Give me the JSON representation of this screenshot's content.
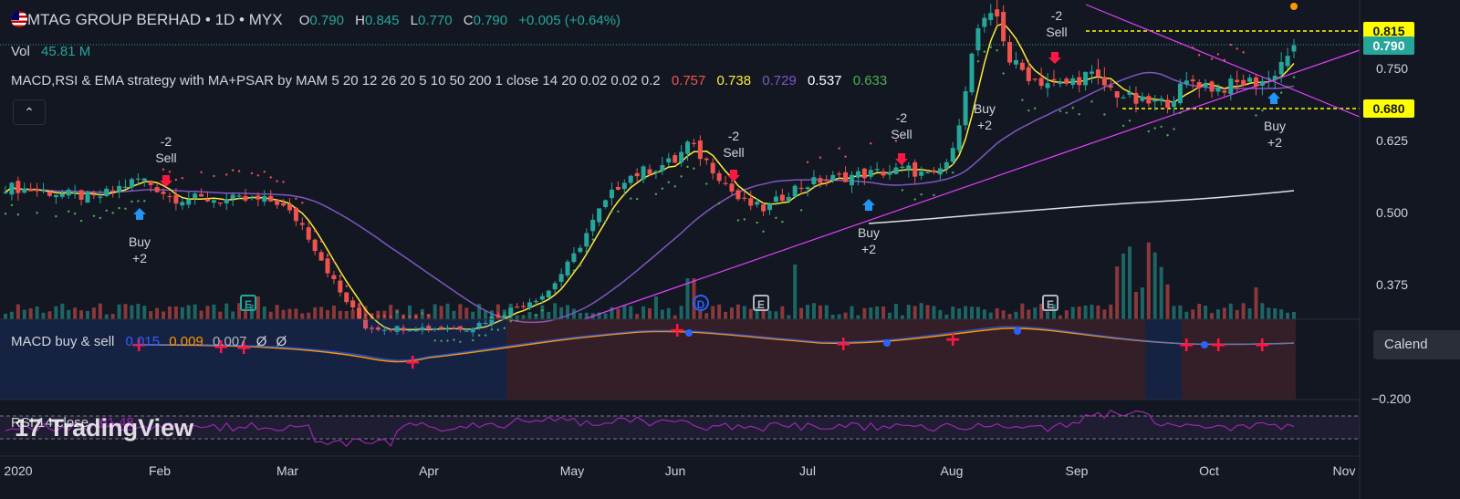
{
  "header": {
    "title": "MTAG GROUP BERHAD • 1D • MYX",
    "o_label": "O",
    "o": "0.790",
    "h_label": "H",
    "h": "0.845",
    "l_label": "L",
    "l": "0.770",
    "c_label": "C",
    "c": "0.790",
    "change": "+0.005 (+0.64%)",
    "vol_label": "Vol",
    "vol": "45.81 M",
    "strategy_label": "MACD,RSI & EMA strategy with MA+PSAR by MAM 5 20 12 26 20 5 10 50 200 1 close 14 20 0.02 0.02 0.2",
    "strategy_values": [
      "0.757",
      "0.738",
      "0.729",
      "0.537",
      "0.633"
    ],
    "collapse_icon": "chevron-up-icon",
    "collapse_glyph": "⌃"
  },
  "macd_pane": {
    "label": "MACD buy & sell",
    "v1": "0.015",
    "v2": "0.009",
    "v3": "0.007",
    "v4": "Ø",
    "v5": "Ø",
    "axis_label": "−0.200"
  },
  "rsi_pane": {
    "label": "RSI 14 close",
    "value": "61.48"
  },
  "watermark": {
    "logo": "17",
    "text": "TradingView"
  },
  "calendar_button": "Calend",
  "price_tags": [
    {
      "text": "0.815",
      "bg": "#ffff00",
      "fg": "#131722",
      "price": 0.815
    },
    {
      "text": "0.790",
      "bg": "#26a69a",
      "fg": "#ffffff",
      "price": 0.79
    },
    {
      "text": "0.680",
      "bg": "#ffff00",
      "fg": "#131722",
      "price": 0.68
    }
  ],
  "events": [
    {
      "kind": "E",
      "date_index": 74
    },
    {
      "kind": "D",
      "date_index": 104
    },
    {
      "kind": "E",
      "date_index": 114
    },
    {
      "kind": "E",
      "date_index": 156
    }
  ],
  "signals": [
    {
      "text": "-2\nSell",
      "type": "sell",
      "date_index": 22
    },
    {
      "text": "Buy\n+2",
      "type": "buy",
      "date_index": 20
    },
    {
      "text": "-2\nSell",
      "type": "sell",
      "date_index": 111
    },
    {
      "text": "Buy\n+2",
      "type": "buy",
      "date_index": 132
    },
    {
      "text": "-2\nSell",
      "type": "sell",
      "date_index": 137
    },
    {
      "text": "Buy\n+2",
      "type": "buy",
      "date_index": 149
    },
    {
      "text": "-2\nSell",
      "type": "sell",
      "date_index": 161
    },
    {
      "text": "Buy\n+2",
      "type": "buy",
      "date_index": 196
    }
  ],
  "colors": {
    "bg": "#131722",
    "up": "#26a69a",
    "down": "#ef5350",
    "ema5": "#ffeb3b",
    "ma50": "#7e57c2",
    "ma200": "#e0e0e0",
    "psar": "#ef5350",
    "psar_up": "#4caf50",
    "trend": "#e040fb",
    "macd_line": "#2962ff",
    "signal_line": "#ff9800",
    "rsi": "#9c27b0",
    "sell_arrow": "#ff1744",
    "buy_arrow": "#2196f3"
  },
  "chart_data": {
    "type": "candlestick",
    "x_ticks": [
      "2020",
      "Feb",
      "Mar",
      "Apr",
      "May",
      "Jun",
      "Jul",
      "Aug",
      "Sep",
      "Oct",
      "Nov"
    ],
    "y_ticks": [
      "0.375",
      "0.500",
      "0.625",
      "0.750"
    ],
    "series": [
      {
        "name": "Price",
        "notes": "daily OHLC approx, Jan-Oct 2020"
      },
      {
        "name": "Volume"
      },
      {
        "name": "MACD"
      },
      {
        "name": "RSI 14"
      }
    ],
    "key_prices": {
      "open": 0.79,
      "high": 0.845,
      "low": 0.77,
      "close": 0.79,
      "resistance": 0.815,
      "support": 0.68
    },
    "ylim": [
      0.3,
      0.85
    ]
  }
}
